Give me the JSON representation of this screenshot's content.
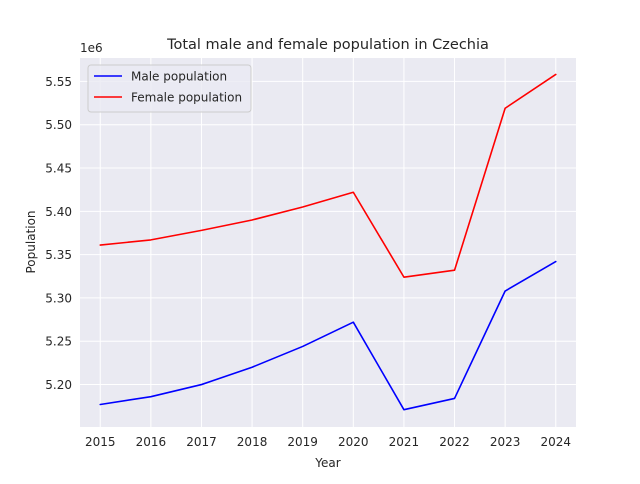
{
  "chart_data": {
    "type": "line",
    "title": "Total male and female population in Czechia",
    "xlabel": "Year",
    "ylabel": "Population",
    "y_offset_label": "1e6",
    "x": [
      "2015",
      "2016",
      "2017",
      "2018",
      "2019",
      "2020",
      "2021",
      "2022",
      "2023",
      "2024"
    ],
    "x_ticks": [
      "2015",
      "2016",
      "2017",
      "2018",
      "2019",
      "2020",
      "2021",
      "2022",
      "2023",
      "2024"
    ],
    "y_ticks": [
      "5.20",
      "5.25",
      "5.30",
      "5.35",
      "5.40",
      "5.45",
      "5.50",
      "5.55"
    ],
    "y_tick_values": [
      5.2,
      5.25,
      5.3,
      5.35,
      5.4,
      5.45,
      5.5,
      5.55
    ],
    "xlim": [
      2014.6,
      2024.4
    ],
    "ylim": [
      5.151,
      5.577
    ],
    "grid": true,
    "legend_position": "top-left",
    "series": [
      {
        "name": "Male population",
        "color": "#0000ff",
        "values": [
          5.177,
          5.186,
          5.2,
          5.22,
          5.244,
          5.272,
          5.171,
          5.184,
          5.308,
          5.342
        ]
      },
      {
        "name": "Female population",
        "color": "#ff0000",
        "values": [
          5.361,
          5.367,
          5.378,
          5.39,
          5.405,
          5.422,
          5.324,
          5.332,
          5.519,
          5.558
        ]
      }
    ]
  }
}
